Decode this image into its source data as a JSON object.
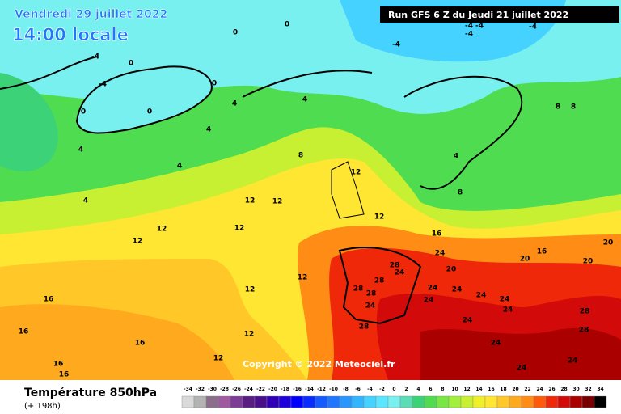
{
  "header": {
    "date": "Vendredi 29 juillet 2022",
    "time": "14:00 locale",
    "run": "Run GFS 6 Z du Jeudi 21 juillet 2022"
  },
  "copyright": "Copyright © 2022 Meteociel.fr",
  "footer": {
    "title": "Température 850hPa",
    "offset": "(+ 198h)"
  },
  "scale": {
    "ticks": [
      -34,
      -32,
      -30,
      -28,
      -26,
      -24,
      -22,
      -20,
      -18,
      -16,
      -14,
      -12,
      -10,
      -8,
      -6,
      -4,
      -2,
      0,
      2,
      4,
      6,
      8,
      10,
      12,
      14,
      16,
      18,
      20,
      22,
      24,
      26,
      28,
      30,
      32,
      34
    ],
    "colors": [
      "#d9d9d9",
      "#b3b3b3",
      "#8c6e8c",
      "#a05aa0",
      "#7d3c96",
      "#5a1e82",
      "#4b0f8c",
      "#3200b4",
      "#1e00dc",
      "#0000ff",
      "#0a2dff",
      "#145aff",
      "#1e78ff",
      "#2896ff",
      "#32b4ff",
      "#46d2ff",
      "#5ae6ff",
      "#78f0f0",
      "#5adcb4",
      "#3cd278",
      "#50dc50",
      "#78e646",
      "#a0f03c",
      "#c8f032",
      "#f0f028",
      "#ffe632",
      "#ffc828",
      "#ffaa1e",
      "#ff8c14",
      "#ff5a0a",
      "#f0280a",
      "#d20a0a",
      "#aa0000",
      "#780000",
      "#000000"
    ]
  },
  "contour_labels": [
    0,
    -4,
    -4,
    -4,
    0,
    0,
    0,
    0,
    0,
    4,
    4,
    4,
    4,
    4,
    4,
    8,
    8,
    8,
    4,
    8,
    12,
    12,
    12,
    12,
    12,
    12,
    12,
    12,
    12,
    12,
    12,
    16,
    16,
    16,
    16,
    16,
    16,
    16,
    20,
    20,
    20,
    20,
    24,
    24,
    24,
    24,
    24,
    24,
    24,
    24,
    24,
    24,
    24,
    24,
    24,
    28,
    28,
    28,
    28,
    28,
    28,
    28,
    -4,
    -4,
    -4,
    -4
  ]
}
